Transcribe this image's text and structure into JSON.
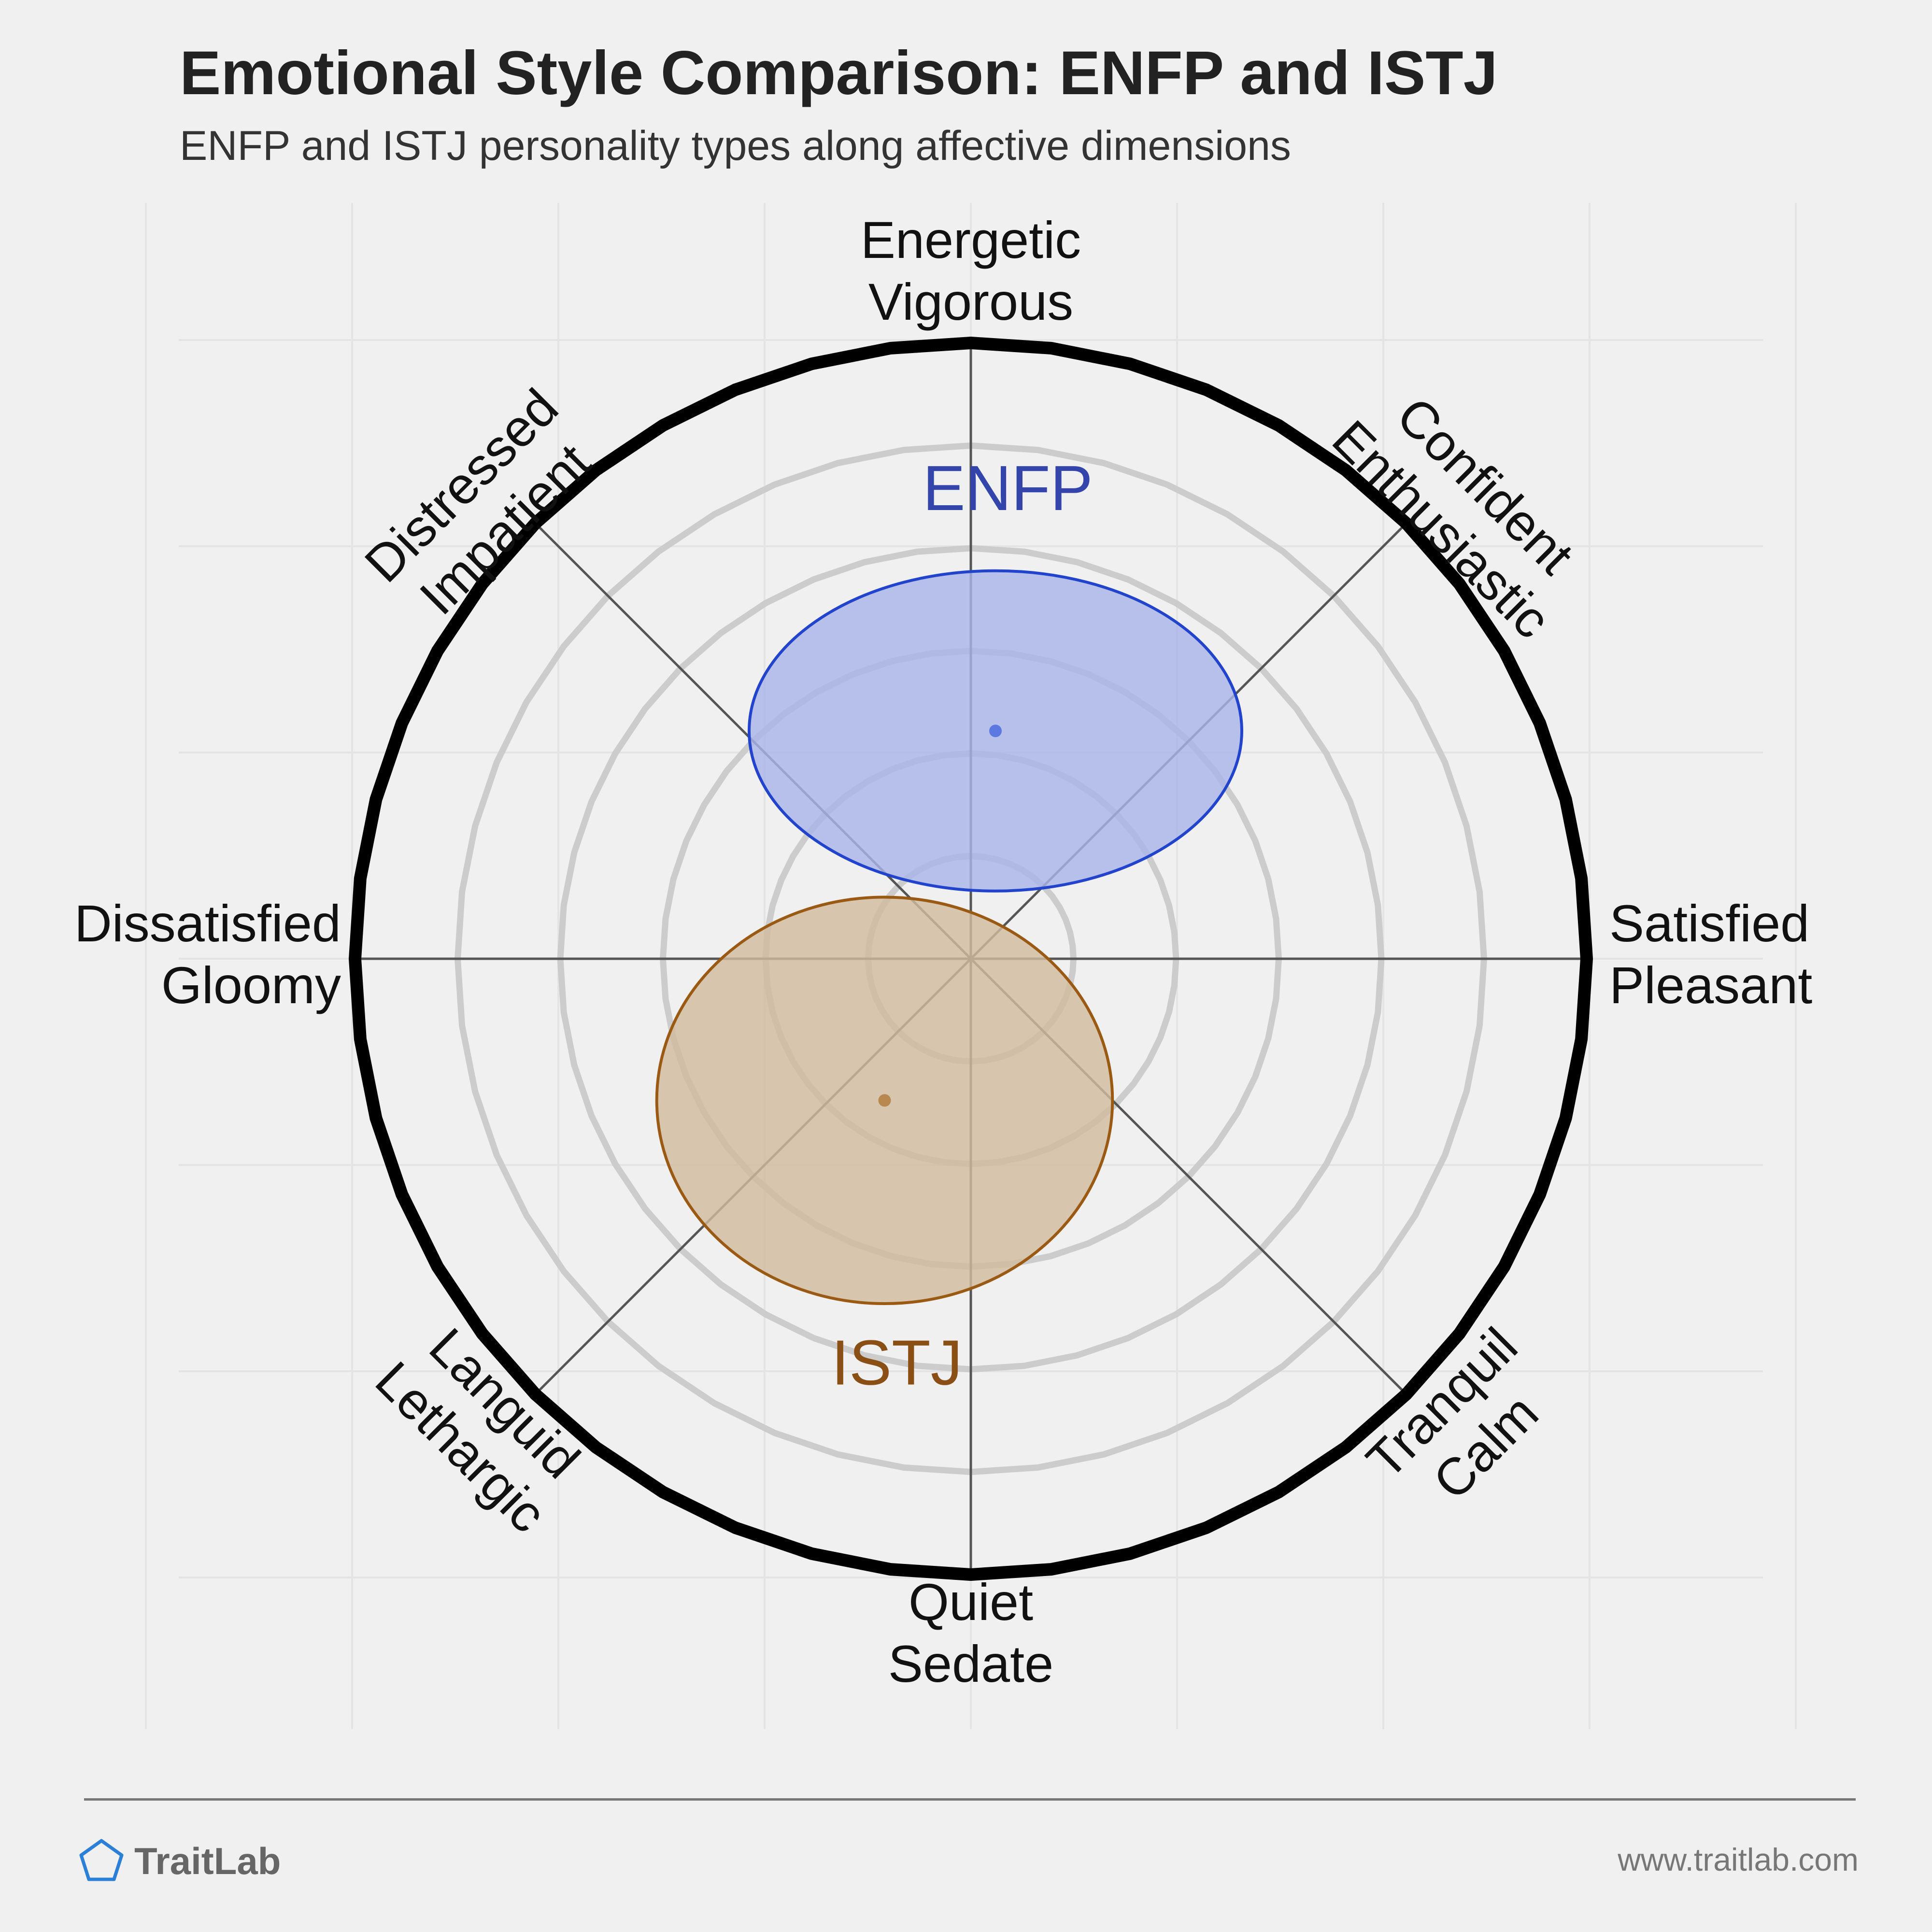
{
  "header": {
    "title": "Emotional Style Comparison: ENFP and ISTJ",
    "subtitle": "ENFP and ISTJ personality types along affective dimensions"
  },
  "footer": {
    "brand": "TraitLab",
    "url": "www.traitlab.com"
  },
  "chart_data": {
    "type": "scatter",
    "coordinate_system": "circumplex",
    "axes_range": [
      -1,
      1
    ],
    "rings": [
      0.1667,
      0.3333,
      0.5,
      0.6667,
      0.8333,
      1.0
    ],
    "grid": true,
    "axis_labels": [
      {
        "id": "top",
        "angle": 90,
        "lines": [
          "Energetic",
          "Vigorous"
        ]
      },
      {
        "id": "top-right",
        "angle": 45,
        "lines": [
          "Confident",
          "Enthusiastic"
        ]
      },
      {
        "id": "right",
        "angle": 0,
        "lines": [
          "Satisfied",
          "Pleasant"
        ]
      },
      {
        "id": "bottom-right",
        "angle": -45,
        "lines": [
          "Tranquil",
          "Calm"
        ]
      },
      {
        "id": "bottom",
        "angle": -90,
        "lines": [
          "Quiet",
          "Sedate"
        ]
      },
      {
        "id": "bottom-left",
        "angle": -135,
        "lines": [
          "Languid",
          "Lethargic"
        ]
      },
      {
        "id": "left",
        "angle": 180,
        "lines": [
          "Dissatisfied",
          "Gloomy"
        ]
      },
      {
        "id": "top-left",
        "angle": 135,
        "lines": [
          "Distressed",
          "Impatient"
        ]
      }
    ],
    "series": [
      {
        "name": "ENFP",
        "x": 0.04,
        "y": 0.37,
        "spread_x": 0.4,
        "spread_y": 0.26,
        "label_y": 0.76,
        "fill": "#aab4e8",
        "stroke": "#2244cc",
        "label_color": "#3344aa",
        "point_color": "#4466dd"
      },
      {
        "name": "ISTJ",
        "x": -0.14,
        "y": -0.23,
        "spread_x": 0.37,
        "spread_y": 0.33,
        "label_y": -0.66,
        "fill": "#d2bb9f",
        "stroke": "#9a5a14",
        "label_color": "#8a4f14",
        "point_color": "#b07838"
      }
    ]
  }
}
